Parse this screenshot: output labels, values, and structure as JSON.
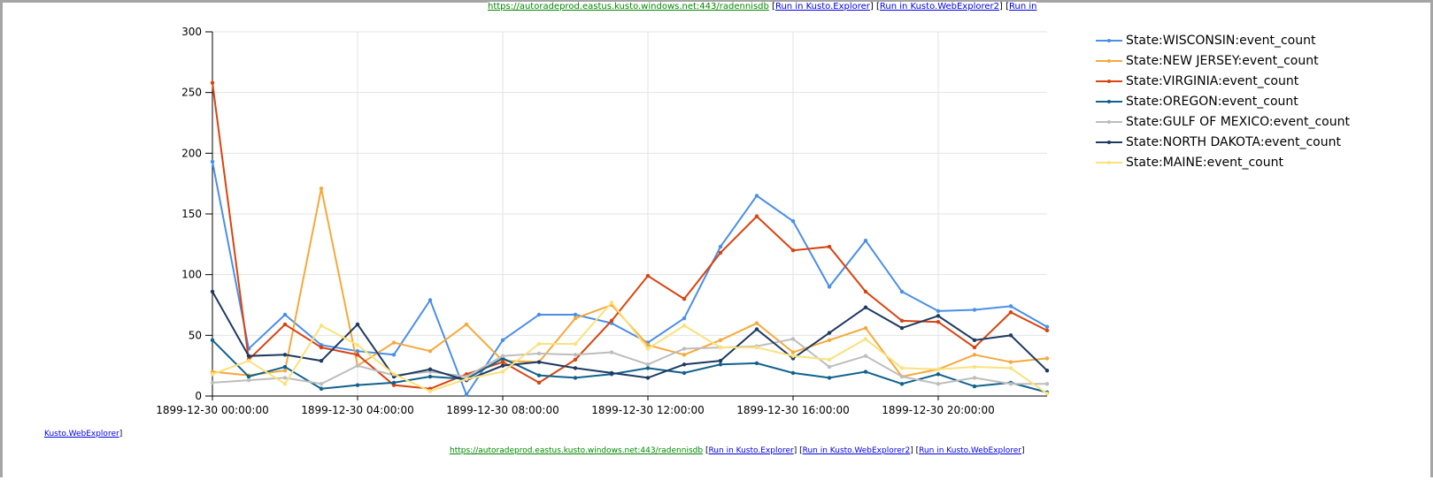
{
  "links": {
    "url": "https://autoradeprod.eastus.kusto.windows.net:443/radennisdb",
    "run_explorer": "Run in Kusto.Explorer",
    "run_webexplorer2": "Run in Kusto.WebExplorer2",
    "run_webexplorer": "Run in Kusto.WebExplorer",
    "top_truncated": "Run in",
    "left_fragment": "Kusto.WebExplorer"
  },
  "chart_data": {
    "type": "line",
    "title": "",
    "xlabel": "",
    "ylabel": "",
    "ylim": [
      0,
      300
    ],
    "yticks": [
      "0",
      "50",
      "100",
      "150",
      "200",
      "250",
      "300"
    ],
    "x": [
      "1899-12-30 00:00:00",
      "1899-12-30 01:00:00",
      "1899-12-30 02:00:00",
      "1899-12-30 03:00:00",
      "1899-12-30 04:00:00",
      "1899-12-30 05:00:00",
      "1899-12-30 06:00:00",
      "1899-12-30 07:00:00",
      "1899-12-30 08:00:00",
      "1899-12-30 09:00:00",
      "1899-12-30 10:00:00",
      "1899-12-30 11:00:00",
      "1899-12-30 12:00:00",
      "1899-12-30 13:00:00",
      "1899-12-30 14:00:00",
      "1899-12-30 15:00:00",
      "1899-12-30 16:00:00",
      "1899-12-30 17:00:00",
      "1899-12-30 18:00:00",
      "1899-12-30 19:00:00",
      "1899-12-30 20:00:00",
      "1899-12-30 21:00:00",
      "1899-12-30 22:00:00",
      "1899-12-30 23:00:00"
    ],
    "xticks": [
      "1899-12-30 00:00:00",
      "1899-12-30 04:00:00",
      "1899-12-30 08:00:00",
      "1899-12-30 12:00:00",
      "1899-12-30 16:00:00",
      "1899-12-30 20:00:00"
    ],
    "grid": true,
    "legend": "right",
    "series": [
      {
        "name": "State:WISCONSIN:event_count",
        "color": "#4a8fe7",
        "values": [
          193,
          39,
          67,
          42,
          37,
          34,
          79,
          1,
          46,
          67,
          67,
          60,
          44,
          64,
          123,
          165,
          144,
          90,
          128,
          86,
          70,
          71,
          74,
          57
        ]
      },
      {
        "name": "State:NEW JERSEY:event_count",
        "color": "#f5a93c",
        "values": [
          20,
          17,
          21,
          171,
          25,
          44,
          37,
          59,
          29,
          28,
          64,
          75,
          42,
          34,
          46,
          60,
          36,
          46,
          56,
          16,
          22,
          34,
          28,
          31
        ]
      },
      {
        "name": "State:VIRGINIA:event_count",
        "color": "#d9430f",
        "values": [
          258,
          30,
          59,
          40,
          34,
          9,
          6,
          18,
          28,
          11,
          30,
          62,
          99,
          80,
          118,
          148,
          120,
          123,
          86,
          62,
          61,
          40,
          69,
          54
        ]
      },
      {
        "name": "State:OREGON:event_count",
        "color": "#10628c",
        "values": [
          46,
          16,
          24,
          6,
          9,
          11,
          16,
          14,
          31,
          17,
          15,
          18,
          23,
          19,
          26,
          27,
          19,
          15,
          20,
          10,
          18,
          8,
          11,
          3
        ]
      },
      {
        "name": "State:GULF OF MEXICO:event_count",
        "color": "#bdbdbd",
        "values": [
          11,
          13,
          15,
          10,
          25,
          17,
          20,
          16,
          33,
          35,
          34,
          36,
          26,
          39,
          40,
          41,
          47,
          24,
          33,
          16,
          10,
          15,
          10,
          10
        ]
      },
      {
        "name": "State:NORTH DAKOTA:event_count",
        "color": "#1e3a60",
        "values": [
          86,
          33,
          34,
          29,
          59,
          16,
          22,
          13,
          25,
          28,
          23,
          19,
          15,
          26,
          29,
          55,
          31,
          52,
          73,
          56,
          66,
          46,
          50,
          21
        ]
      },
      {
        "name": "State:MAINE:event_count",
        "color": "#fbe17c",
        "values": [
          18,
          29,
          10,
          58,
          42,
          18,
          4,
          14,
          20,
          43,
          43,
          77,
          39,
          58,
          40,
          40,
          33,
          30,
          47,
          23,
          22,
          24,
          23,
          2
        ]
      }
    ]
  }
}
